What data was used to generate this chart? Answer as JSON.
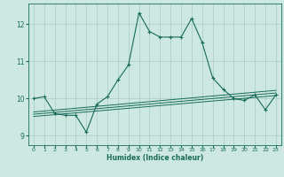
{
  "xlabel": "Humidex (Indice chaleur)",
  "background_color": "#cce8e0",
  "line_color": "#1a6b5a",
  "grid_color": "#b0d4cc",
  "xlim": [
    -0.5,
    23.5
  ],
  "ylim": [
    8.75,
    12.55
  ],
  "yticks": [
    9,
    10,
    11,
    12
  ],
  "xticks": [
    0,
    1,
    2,
    3,
    4,
    5,
    6,
    7,
    8,
    9,
    10,
    11,
    12,
    13,
    14,
    15,
    16,
    17,
    18,
    19,
    20,
    21,
    22,
    23
  ],
  "main_x": [
    0,
    1,
    2,
    3,
    4,
    5,
    6,
    7,
    8,
    9,
    10,
    11,
    12,
    13,
    14,
    15,
    16,
    17,
    18,
    19,
    20,
    21,
    22,
    23
  ],
  "main_y": [
    10.0,
    10.05,
    9.6,
    9.55,
    9.55,
    9.1,
    9.85,
    10.05,
    10.5,
    10.9,
    12.3,
    11.8,
    11.65,
    11.65,
    11.65,
    12.15,
    11.5,
    10.55,
    10.25,
    10.0,
    9.95,
    10.1,
    9.7,
    10.1
  ],
  "line1_x": [
    0,
    23
  ],
  "line1_y": [
    9.52,
    10.08
  ],
  "line2_x": [
    0,
    23
  ],
  "line2_y": [
    9.58,
    10.15
  ],
  "line3_x": [
    0,
    23
  ],
  "line3_y": [
    9.64,
    10.22
  ]
}
